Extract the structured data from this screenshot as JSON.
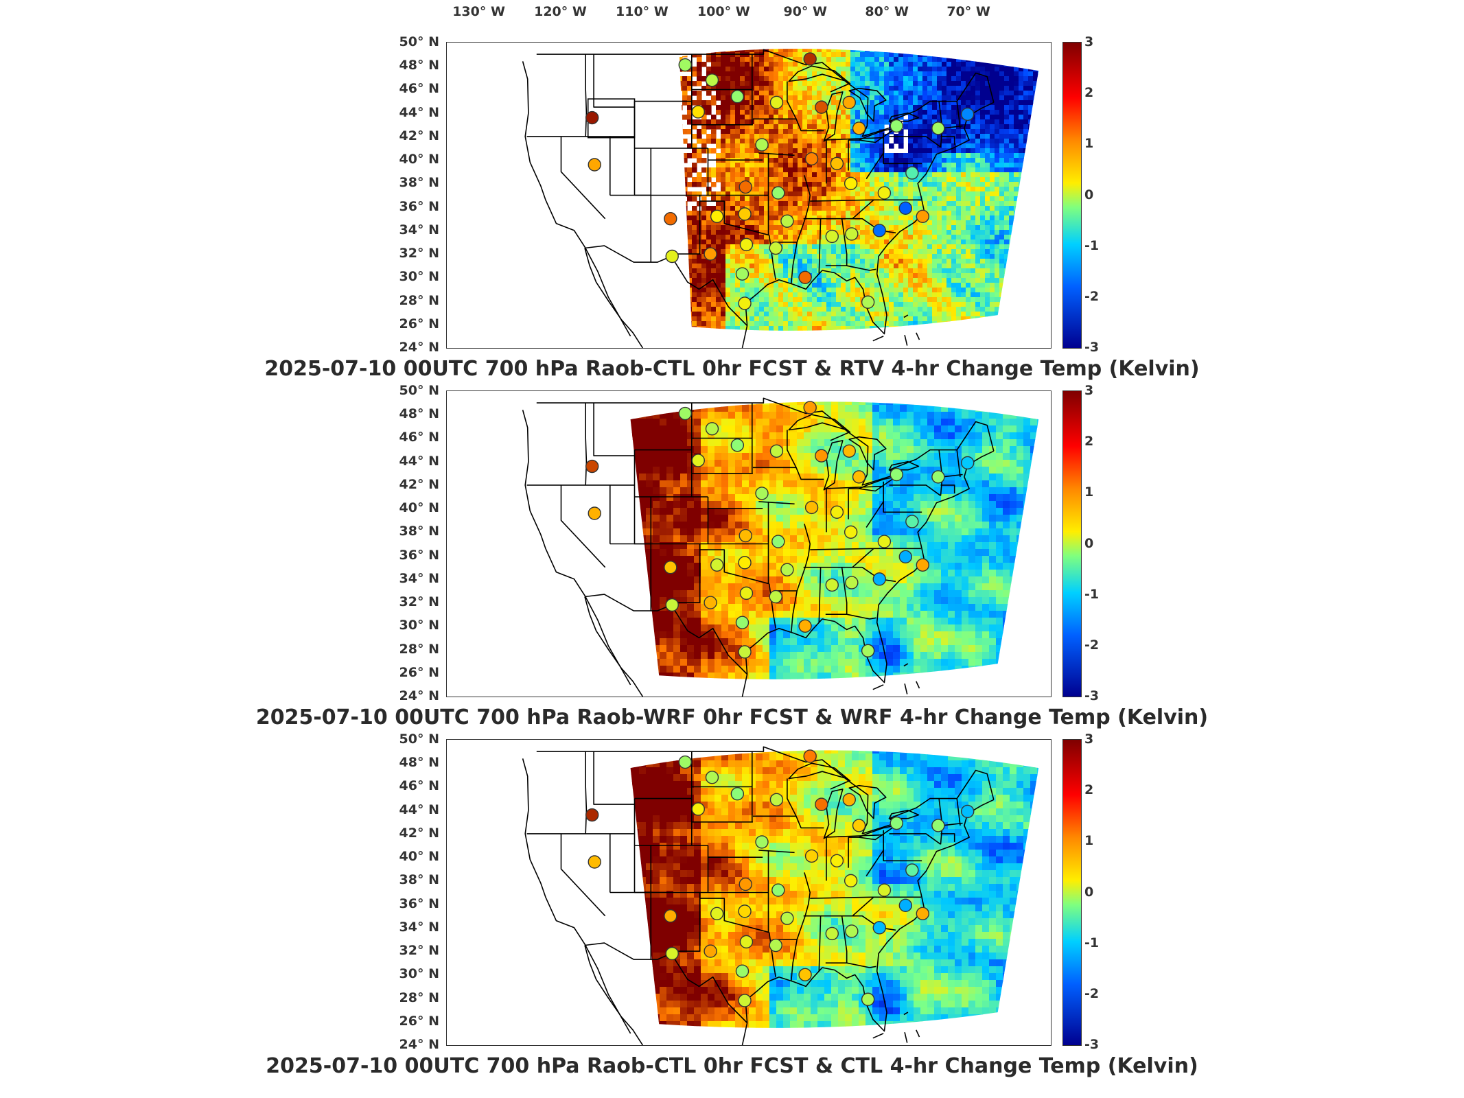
{
  "longitude_labels": [
    "130° W",
    "120° W",
    "110° W",
    "100° W",
    "90° W",
    "80° W",
    "70° W"
  ],
  "latitude_labels": [
    "50° N",
    "48° N",
    "46° N",
    "44° N",
    "42° N",
    "40° N",
    "38° N",
    "36° N",
    "34° N",
    "32° N",
    "30° N",
    "28° N",
    "26° N",
    "24° N"
  ],
  "colorbar_ticks": [
    "3",
    "2",
    "1",
    "0",
    "-1",
    "-2",
    "-3"
  ],
  "colorbar_colors": {
    "max": "#7f0000",
    "high": "#ff0000",
    "mid_high": "#ffee00",
    "zero": "#7fff7f",
    "mid_low": "#00d0ff",
    "min": "#00008f"
  },
  "panels": [
    {
      "title": "2025-07-10 00UTC 700 hPa Raob-CTL 0hr FCST & RTV 4-hr Change Temp (Kelvin)",
      "field_style": "retrieval-warm"
    },
    {
      "title": "2025-07-10 00UTC 700 hPa Raob-WRF 0hr FCST & WRF 4-hr Change Temp (Kelvin)",
      "field_style": "model"
    },
    {
      "title": "2025-07-10 00UTC 700 hPa Raob-CTL 0hr FCST & CTL 4-hr Change Temp (Kelvin)",
      "field_style": "model"
    }
  ],
  "stations": [
    {
      "lon": -104.8,
      "lat": 48.1,
      "value": 0.3
    },
    {
      "lon": -101.5,
      "lat": 46.8,
      "value": 0.5
    },
    {
      "lon": -98.4,
      "lat": 45.4,
      "value": 0.2
    },
    {
      "lon": -93.6,
      "lat": 44.9,
      "value": 0.8
    },
    {
      "lon": -89.5,
      "lat": 48.6,
      "value": 2.6
    },
    {
      "lon": -88.1,
      "lat": 44.5,
      "value": 2.3
    },
    {
      "lon": -84.7,
      "lat": 44.9,
      "value": 1.6
    },
    {
      "lon": -83.5,
      "lat": 42.7,
      "value": 1.5
    },
    {
      "lon": -78.9,
      "lat": 42.9,
      "value": 0.2
    },
    {
      "lon": -73.8,
      "lat": 42.7,
      "value": 0.3
    },
    {
      "lon": -70.2,
      "lat": 43.9,
      "value": -1.5
    },
    {
      "lon": -103.2,
      "lat": 44.1,
      "value": 1.1
    },
    {
      "lon": -116.2,
      "lat": 43.6,
      "value": 2.8
    },
    {
      "lon": -115.9,
      "lat": 39.6,
      "value": 1.6
    },
    {
      "lon": -95.4,
      "lat": 41.3,
      "value": 0.4
    },
    {
      "lon": -89.3,
      "lat": 40.1,
      "value": 1.9
    },
    {
      "lon": -86.2,
      "lat": 39.7,
      "value": 1.4
    },
    {
      "lon": -97.4,
      "lat": 37.7,
      "value": 2.1
    },
    {
      "lon": -93.4,
      "lat": 37.2,
      "value": 0.2
    },
    {
      "lon": -84.5,
      "lat": 38.0,
      "value": 1.0
    },
    {
      "lon": -80.4,
      "lat": 37.2,
      "value": 0.9
    },
    {
      "lon": -77.0,
      "lat": 38.9,
      "value": -0.3
    },
    {
      "lon": -77.8,
      "lat": 35.9,
      "value": -1.8
    },
    {
      "lon": -100.9,
      "lat": 35.2,
      "value": 1.0
    },
    {
      "lon": -97.5,
      "lat": 35.4,
      "value": 1.3
    },
    {
      "lon": -92.3,
      "lat": 34.8,
      "value": 0.5
    },
    {
      "lon": -86.8,
      "lat": 33.5,
      "value": 0.7
    },
    {
      "lon": -84.4,
      "lat": 33.7,
      "value": 0.6
    },
    {
      "lon": -81.0,
      "lat": 34.0,
      "value": -1.7
    },
    {
      "lon": -106.6,
      "lat": 35.0,
      "value": 2.1
    },
    {
      "lon": -106.4,
      "lat": 31.8,
      "value": 0.8
    },
    {
      "lon": -101.7,
      "lat": 32.0,
      "value": 1.7
    },
    {
      "lon": -97.3,
      "lat": 32.8,
      "value": 0.9
    },
    {
      "lon": -93.7,
      "lat": 32.5,
      "value": 0.6
    },
    {
      "lon": -90.1,
      "lat": 30.0,
      "value": 2.1
    },
    {
      "lon": -97.5,
      "lat": 27.8,
      "value": 0.9
    },
    {
      "lon": -97.8,
      "lat": 30.3,
      "value": 0.3
    },
    {
      "lon": -82.4,
      "lat": 27.9,
      "value": 0.4
    },
    {
      "lon": -75.7,
      "lat": 35.2,
      "value": 1.7
    }
  ]
}
